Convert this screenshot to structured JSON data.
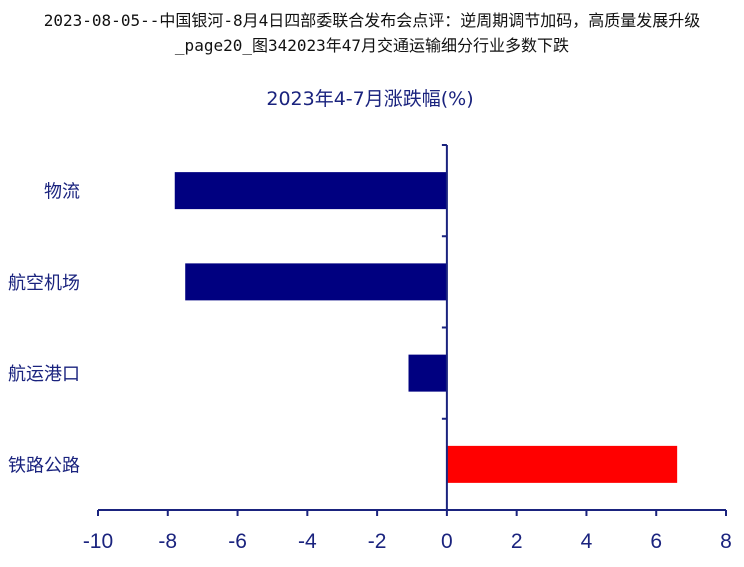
{
  "page": {
    "title": "2023-08-05--中国银河-8月4日四部委联合发布会点评：逆周期调节加码，高质量发展升级_page20_图342023年47月交通运输细分行业多数下跌"
  },
  "colors": {
    "negative": "#000080",
    "positive": "#ff0000",
    "axis": "#1a237e"
  },
  "chart_data": {
    "type": "bar",
    "orientation": "horizontal",
    "title": "2023年4-7月涨跌幅(%)",
    "categories": [
      "物流",
      "航空机场",
      "航运港口",
      "铁路公路"
    ],
    "values": [
      -7.8,
      -7.5,
      -1.1,
      6.6
    ],
    "xlim": [
      -10,
      8
    ],
    "xticks": [
      -10,
      -8,
      -6,
      -4,
      -2,
      0,
      2,
      4,
      6,
      8
    ],
    "xlabel": "",
    "ylabel": "",
    "grid": false,
    "legend": "none"
  }
}
